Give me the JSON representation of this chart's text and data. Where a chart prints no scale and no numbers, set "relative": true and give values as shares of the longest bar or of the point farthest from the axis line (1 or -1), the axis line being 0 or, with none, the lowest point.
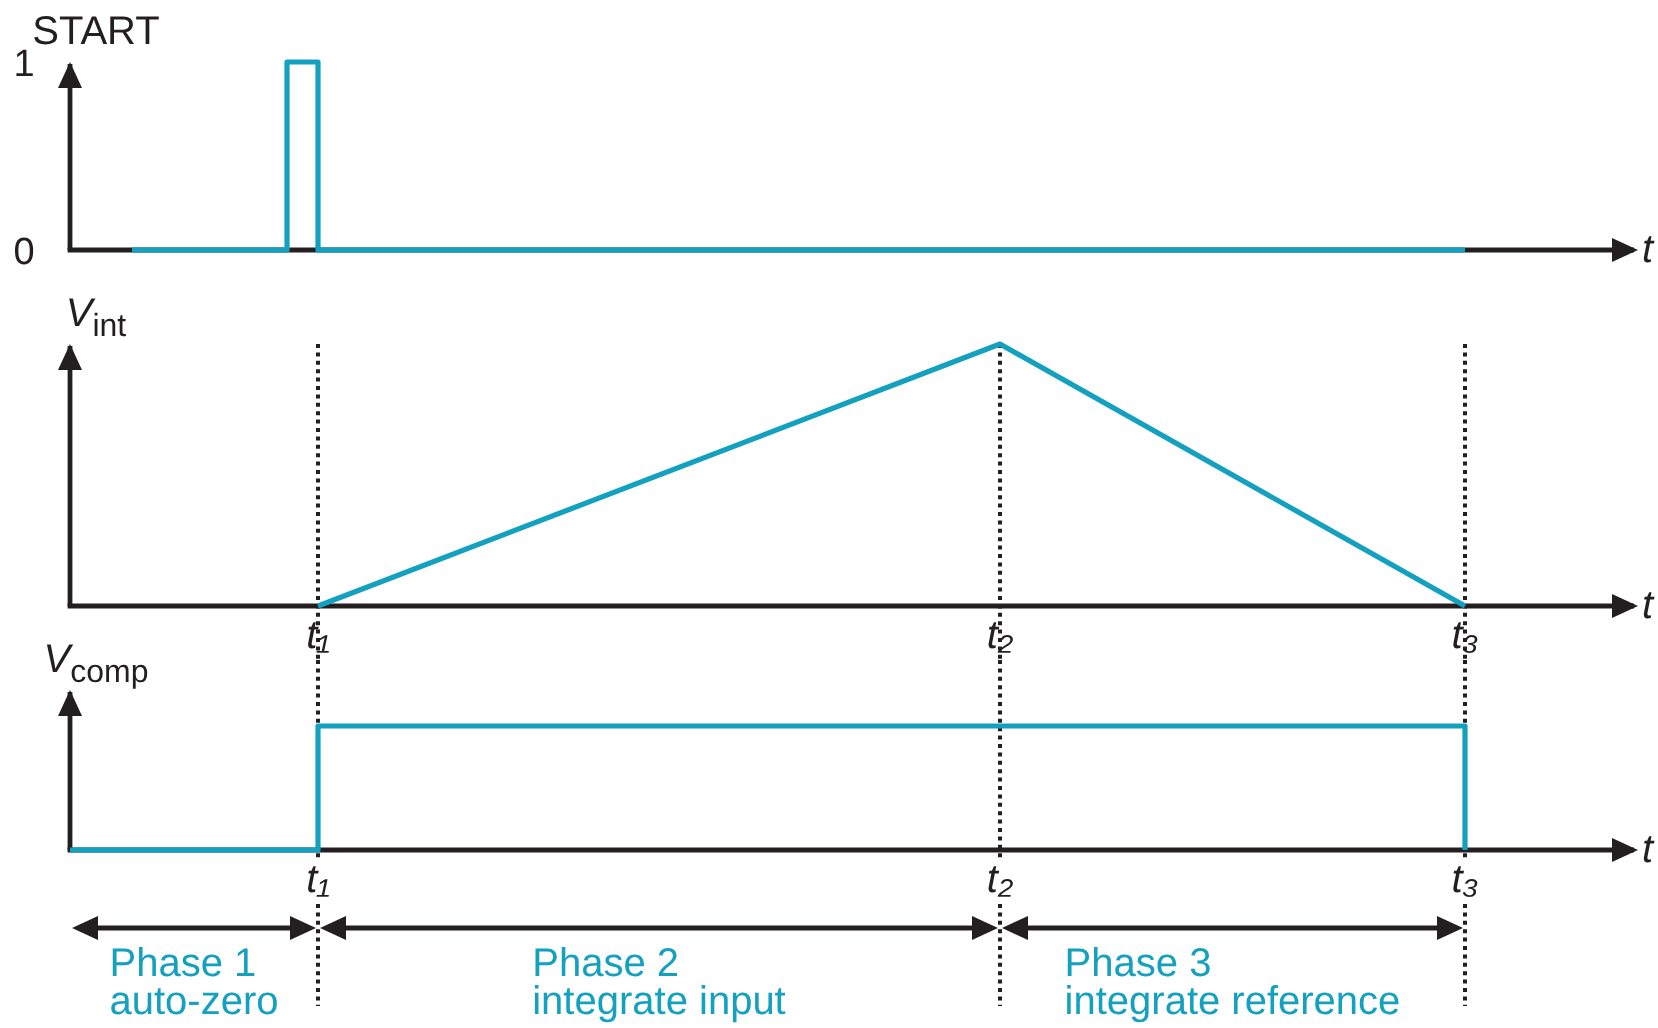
{
  "chart_data": [
    {
      "type": "step",
      "ylabel": "START",
      "xlabel": "t",
      "categories": [
        null,
        null,
        null,
        null,
        null,
        null,
        null,
        null,
        null,
        null,
        null,
        null,
        null,
        null,
        null,
        null,
        null,
        null,
        null,
        null,
        null,
        null,
        null,
        null,
        null,
        null,
        null,
        null,
        null,
        null,
        null,
        null,
        null,
        null,
        null,
        null,
        null,
        null,
        null,
        null,
        null,
        null,
        null,
        null,
        null,
        null,
        null,
        null,
        null,
        null,
        null
      ],
      "series": [
        {
          "color": "#14a0bf",
          "values": [
            null,
            null,
            0,
            0,
            0,
            0,
            0,
            1,
            0,
            0,
            0,
            0,
            0,
            0,
            0,
            0,
            0,
            0,
            0,
            0,
            0,
            0,
            0,
            0,
            0,
            0,
            0,
            0,
            0,
            0,
            0,
            0,
            0,
            0,
            0,
            0,
            0,
            0,
            0,
            0,
            0,
            0,
            0,
            0,
            0,
            0,
            null,
            null,
            null,
            null,
            null
          ]
        }
      ],
      "ylim": [
        0,
        1
      ],
      "yticks": [
        0,
        1
      ],
      "tick_labels": "y"
    },
    {
      "type": "line",
      "ylabel": "V$_{int}$",
      "xlabel": "t",
      "categories": [
        null,
        null,
        null,
        null,
        null,
        null,
        null,
        null,
        "t₁",
        null,
        null,
        null,
        null,
        null,
        null,
        null,
        null,
        null,
        null,
        null,
        null,
        null,
        null,
        null,
        null,
        null,
        null,
        null,
        null,
        null,
        "t₂",
        null,
        null,
        null,
        null,
        null,
        null,
        null,
        null,
        null,
        null,
        null,
        null,
        null,
        null,
        "t₃",
        null,
        null,
        null,
        null,
        null
      ],
      "series": [
        {
          "color": "#14a0bf",
          "values": [
            null,
            null,
            null,
            null,
            null,
            null,
            null,
            null,
            0,
            null,
            null,
            null,
            null,
            null,
            null,
            null,
            null,
            null,
            null,
            null,
            null,
            null,
            null,
            null,
            null,
            null,
            null,
            null,
            null,
            null,
            1,
            null,
            null,
            null,
            null,
            null,
            null,
            null,
            null,
            null,
            null,
            null,
            null,
            null,
            null,
            0,
            null,
            null,
            null,
            null,
            null
          ]
        }
      ],
      "relative": true,
      "tick_labels": "x",
      "ref_lines": [
        {
          "axis": "x",
          "value": "t₁"
        },
        {
          "axis": "x",
          "value": "t₂"
        },
        {
          "axis": "x",
          "value": "t₃"
        }
      ]
    },
    {
      "type": "step",
      "ylabel": "V$_{comp}$",
      "xlabel": "t",
      "categories": [
        null,
        null,
        null,
        null,
        null,
        null,
        null,
        null,
        "t₁",
        null,
        null,
        null,
        null,
        null,
        null,
        null,
        null,
        null,
        null,
        null,
        null,
        null,
        null,
        null,
        null,
        null,
        null,
        null,
        null,
        null,
        "t₂",
        null,
        null,
        null,
        null,
        null,
        null,
        null,
        null,
        null,
        null,
        null,
        null,
        null,
        null,
        "t₃",
        null,
        null,
        null,
        null,
        null
      ],
      "series": [
        {
          "color": "#14a0bf",
          "values": [
            0,
            0,
            0,
            0,
            0,
            0,
            0,
            0,
            1,
            1,
            1,
            1,
            1,
            1,
            1,
            1,
            1,
            1,
            1,
            1,
            1,
            1,
            1,
            1,
            1,
            1,
            1,
            1,
            1,
            1,
            1,
            1,
            1,
            1,
            1,
            1,
            1,
            1,
            1,
            1,
            1,
            1,
            1,
            1,
            1,
            0,
            null,
            null,
            null,
            null,
            null
          ]
        }
      ],
      "relative": true,
      "tick_labels": "x",
      "ref_lines": [
        {
          "axis": "x",
          "value": "t₁"
        },
        {
          "axis": "x",
          "value": "t₂"
        },
        {
          "axis": "x",
          "value": "t₃"
        }
      ],
      "annotations": [
        "Phase 1\nauto-zero",
        "Phase 2\nintegrate input",
        "Phase 3\nintegrate reference"
      ]
    }
  ]
}
